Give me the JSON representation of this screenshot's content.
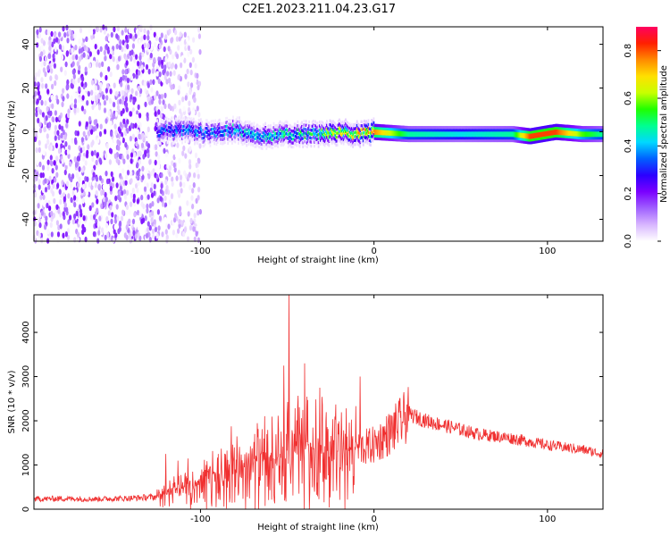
{
  "title": "C2E1.2023.211.04.23.G17",
  "chart_data": [
    {
      "type": "heatmap",
      "xlabel": "Height of straight line (km)",
      "ylabel": "Frequency (Hz)",
      "xlim": [
        -196,
        132
      ],
      "ylim": [
        -50,
        48
      ],
      "xticks": [
        -100,
        0,
        100
      ],
      "xtick_labels": [
        "-100",
        "0",
        "100"
      ],
      "yticks": [
        -40,
        -20,
        0,
        20,
        40
      ],
      "ytick_labels": [
        "-40",
        "-20",
        "0",
        "20",
        "40"
      ],
      "colorbar": {
        "label": "Normalized spectral amplitude",
        "range": [
          0.0,
          0.9
        ],
        "ticks": [
          0.0,
          0.2,
          0.4,
          0.6,
          0.8
        ],
        "tick_labels": [
          "0.0",
          "0.2",
          "0.4",
          "0.6",
          "0.8"
        ],
        "colormap": [
          "#ffffff",
          "#d8b6ff",
          "#a060ff",
          "#7a00ff",
          "#2b00ff",
          "#0060ff",
          "#00d8ff",
          "#00ff90",
          "#20ff00",
          "#c8ff00",
          "#ffe000",
          "#ff8a00",
          "#ff2000",
          "#ff0060"
        ]
      },
      "regions": [
        {
          "x_range": [
            -196,
            -120
          ],
          "description_values": {
            "freq_range": [
              -50,
              48
            ],
            "amplitude": [
              0.0,
              0.2
            ]
          }
        },
        {
          "x_range": [
            -120,
            -100
          ],
          "description_values": {
            "freq_range": [
              -50,
              48
            ],
            "amplitude": [
              0.0,
              0.1
            ]
          }
        },
        {
          "x_range": [
            -125,
            132
          ],
          "description_values": {
            "center_freq": 0,
            "band_halfwidth": 3,
            "amplitude": [
              0.2,
              0.9
            ]
          }
        }
      ],
      "ridge": {
        "x": [
          -125,
          -110,
          -95,
          -80,
          -65,
          -50,
          -35,
          -20,
          -10,
          0,
          20,
          50,
          80,
          90,
          105,
          120,
          132
        ],
        "freq": [
          0,
          1,
          -1,
          1,
          -2,
          -1,
          -1,
          0,
          -1,
          0,
          -1,
          -1,
          -1,
          -2,
          0,
          -1,
          -1
        ],
        "amplitude": [
          0.35,
          0.4,
          0.4,
          0.45,
          0.45,
          0.5,
          0.55,
          0.65,
          0.7,
          0.8,
          0.5,
          0.45,
          0.5,
          0.85,
          0.85,
          0.6,
          0.5
        ]
      }
    },
    {
      "type": "line",
      "xlabel": "Height of straight line (km)",
      "ylabel": "SNR (10 * v/v)",
      "xlim": [
        -196,
        132
      ],
      "ylim": [
        0,
        4850
      ],
      "xticks": [
        -100,
        0,
        100
      ],
      "xtick_labels": [
        "-100",
        "0",
        "100"
      ],
      "yticks": [
        0,
        1000,
        2000,
        3000,
        4000
      ],
      "ytick_labels": [
        "0",
        "1000",
        "2000",
        "3000",
        "4000"
      ],
      "series": [
        {
          "color": "#f03030",
          "x": [
            -196,
            -180,
            -160,
            -140,
            -125,
            -118,
            -110,
            -100,
            -90,
            -80,
            -70,
            -60,
            -50,
            -45,
            -40,
            -30,
            -20,
            -10,
            0,
            10,
            20,
            30,
            40,
            60,
            80,
            100,
            120,
            132
          ],
          "y": [
            230,
            240,
            230,
            250,
            280,
            450,
            520,
            650,
            850,
            950,
            1050,
            1150,
            1250,
            1350,
            1450,
            1400,
            1350,
            1350,
            1450,
            1750,
            2150,
            2000,
            1900,
            1700,
            1600,
            1450,
            1350,
            1250
          ],
          "peaks": [
            {
              "x": -49,
              "y": 4850
            },
            {
              "x": -52,
              "y": 3250
            },
            {
              "x": -40,
              "y": 3300
            },
            {
              "x": -8,
              "y": 3000
            },
            {
              "x": -113,
              "y": 1100
            },
            {
              "x": -120,
              "y": 1250
            }
          ]
        }
      ]
    }
  ]
}
